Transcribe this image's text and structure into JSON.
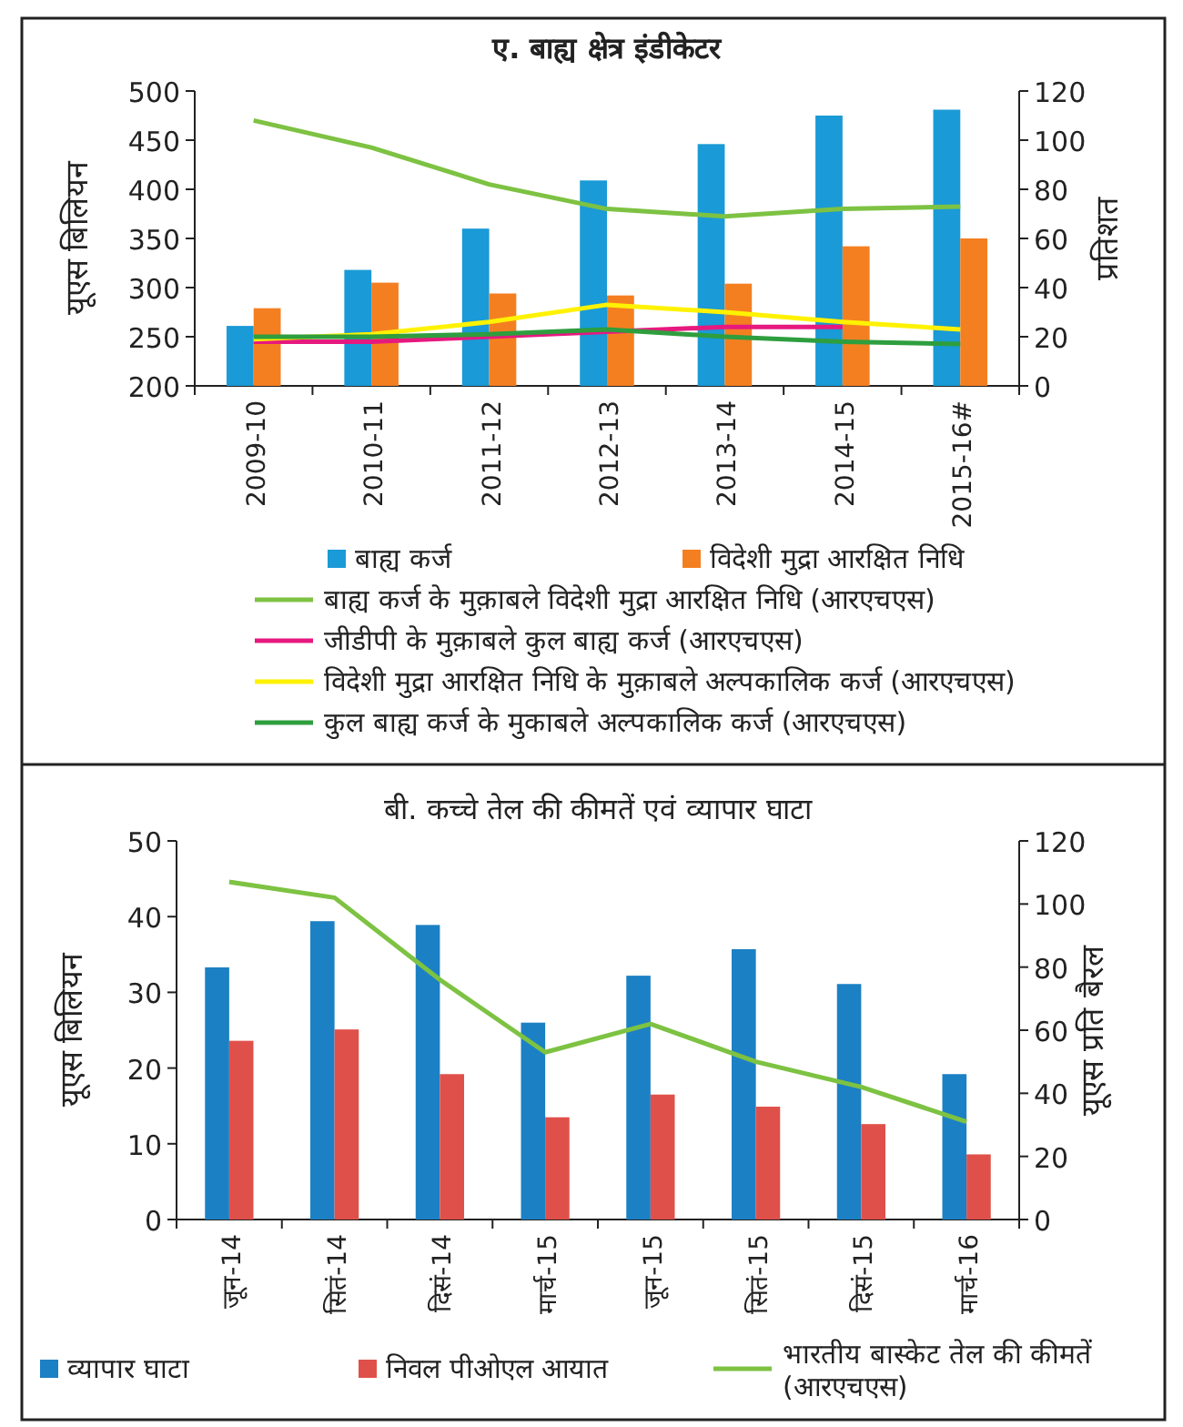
{
  "chart_data": [
    {
      "type": "bar",
      "title": "ए. बाह्य क्षेत्र इंडीकेटर",
      "ylabel": "यूएस बिलियन",
      "y2label": "प्रतिशत",
      "legend": "bottom",
      "categories": [
        "2009-10",
        "2010-11",
        "2011-12",
        "2012-13",
        "2013-14",
        "2014-15",
        "2015-16#"
      ],
      "ylim": [
        200,
        500
      ],
      "yticks": [
        200,
        250,
        300,
        350,
        400,
        450,
        500
      ],
      "y2lim": [
        0,
        120
      ],
      "y2ticks": [
        0,
        20,
        40,
        60,
        80,
        100,
        120
      ],
      "series": [
        {
          "name": "बाह्य कर्ज",
          "color": "#1a9ad6",
          "values": [
            261,
            318,
            360,
            409,
            446,
            475,
            481
          ]
        },
        {
          "name": "विदेशी मुद्रा आरक्षित निधि",
          "color": "#f47f21",
          "values": [
            279,
            305,
            294,
            292,
            304,
            342,
            350
          ]
        },
        {
          "name": "बाह्य कर्ज के मुक़ाबले विदेशी मुद्रा आरक्षित निधि (आरएचएस)",
          "type": "line",
          "axis": "y2",
          "color": "#7dc242",
          "values": [
            108,
            97,
            82,
            72,
            69,
            72,
            73
          ]
        },
        {
          "name": "जीडीपी के मुक़ाबले कुल बाह्य कर्ज (आरएचएस)",
          "type": "line",
          "axis": "y2",
          "color": "#e6197f",
          "values": [
            18,
            18,
            20,
            22,
            24,
            24,
            null
          ]
        },
        {
          "name": "विदेशी मुद्रा आरक्षित निधि के मुक़ाबले अल्पकालिक कर्ज (आरएचएस)",
          "type": "line",
          "axis": "y2",
          "color": "#fff200",
          "values": [
            19,
            21,
            26,
            33,
            30,
            26,
            23
          ]
        },
        {
          "name": "कुल बाह्य कर्ज के मुकाबले अल्पकालिक कर्ज (आरएचएस)",
          "type": "line",
          "axis": "y2",
          "color": "#2e9e3e",
          "values": [
            20,
            20,
            21,
            23,
            20,
            18,
            17
          ]
        }
      ]
    },
    {
      "type": "bar",
      "title": "बी. कच्चे तेल की कीमतें एवं व्यापार घाटा",
      "ylabel": "यूएस बिलियन",
      "y2label": "यूएस प्रति बैरल",
      "legend": "bottom",
      "categories": [
        "जून-14",
        "सितं-14",
        "दिसं-14",
        "मार्च-15",
        "जून-15",
        "सितं-15",
        "दिसं-15",
        "मार्च-16"
      ],
      "ylim": [
        0,
        50
      ],
      "yticks": [
        0,
        10,
        20,
        30,
        40,
        50
      ],
      "y2lim": [
        0,
        120
      ],
      "y2ticks": [
        0,
        20,
        40,
        60,
        80,
        100,
        120
      ],
      "series": [
        {
          "name": "व्यापार घाटा",
          "color": "#1c80c4",
          "values": [
            33.3,
            39.4,
            38.9,
            26.0,
            32.2,
            35.7,
            31.1,
            19.2
          ]
        },
        {
          "name": "निवल पीओएल आयात",
          "color": "#e0504a",
          "values": [
            23.6,
            25.1,
            19.2,
            13.5,
            16.5,
            14.9,
            12.6,
            8.6
          ]
        },
        {
          "name": "भारतीय बास्केट तेल की कीमतें (आरएचएस)",
          "type": "line",
          "axis": "y2",
          "color": "#7dc242",
          "values": [
            107,
            102,
            76,
            53,
            62,
            50,
            42,
            31
          ]
        }
      ]
    }
  ]
}
